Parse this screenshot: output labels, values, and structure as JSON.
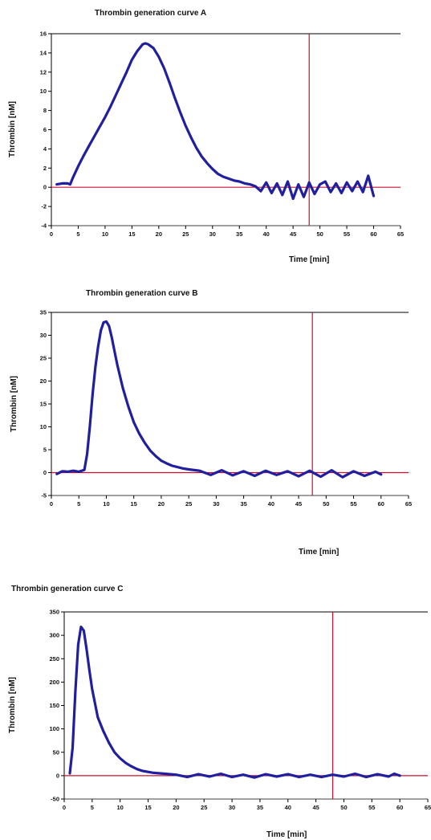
{
  "colors": {
    "curve": "#1f1fa0",
    "reference_lines": "#c8102e",
    "axis": "#000000"
  },
  "chart_data": [
    {
      "type": "line",
      "title": "Thrombin generation curve A",
      "xlabel": "Time [min]",
      "ylabel": "Thrombin [nM]",
      "xlim": [
        0,
        65
      ],
      "ylim": [
        -4,
        16
      ],
      "xticks": [
        0,
        5,
        10,
        15,
        20,
        25,
        30,
        35,
        40,
        45,
        50,
        55,
        60,
        65
      ],
      "yticks": [
        -4,
        -2,
        0,
        2,
        4,
        6,
        8,
        10,
        12,
        14,
        16
      ],
      "xtick_labels": [
        "0",
        "5",
        "10",
        "15",
        "20",
        "25",
        "30",
        "35",
        "40",
        "45",
        "50",
        "55",
        "60",
        "65"
      ],
      "ytick_labels": [
        "-4",
        "-2",
        "0",
        "2",
        "4",
        "6",
        "8",
        "10",
        "12",
        "14",
        "16"
      ],
      "vline_x": 48,
      "hline_y": 0,
      "series": [
        {
          "x": [
            1,
            2,
            3,
            3.5,
            4,
            5,
            6,
            7,
            8,
            9,
            10,
            11,
            12,
            13,
            14,
            15,
            16,
            17,
            17.5,
            18,
            19,
            20,
            21,
            22,
            23,
            24,
            25,
            26,
            27,
            28,
            29,
            30,
            31,
            32,
            33,
            34,
            35,
            36,
            37,
            38,
            39,
            40,
            41,
            42,
            43,
            44,
            45,
            46,
            47,
            48,
            49,
            50,
            51,
            52,
            53,
            54,
            55,
            56,
            57,
            58,
            59,
            60
          ],
          "y": [
            0.3,
            0.4,
            0.4,
            0.3,
            1.0,
            2.2,
            3.3,
            4.3,
            5.3,
            6.3,
            7.3,
            8.4,
            9.6,
            10.8,
            12.0,
            13.3,
            14.2,
            14.9,
            15.0,
            14.9,
            14.5,
            13.6,
            12.4,
            10.9,
            9.3,
            7.8,
            6.4,
            5.2,
            4.1,
            3.2,
            2.5,
            1.9,
            1.4,
            1.1,
            0.9,
            0.7,
            0.6,
            0.4,
            0.3,
            0.1,
            -0.4,
            0.5,
            -0.6,
            0.4,
            -0.8,
            0.6,
            -1.2,
            0.3,
            -1.0,
            0.5,
            -0.7,
            0.3,
            0.6,
            -0.5,
            0.4,
            -0.6,
            0.5,
            -0.4,
            0.6,
            -0.5,
            1.2,
            -0.9
          ]
        }
      ]
    },
    {
      "type": "line",
      "title": "Thrombin generation curve B",
      "xlabel": "Time [min]",
      "ylabel": "Thrombin [nM]",
      "xlim": [
        0,
        65
      ],
      "ylim": [
        -5,
        35
      ],
      "xticks": [
        0,
        5,
        10,
        15,
        20,
        25,
        30,
        35,
        40,
        45,
        50,
        55,
        60,
        65
      ],
      "yticks": [
        -5,
        0,
        5,
        10,
        15,
        20,
        25,
        30,
        35
      ],
      "xtick_labels": [
        "0",
        "5",
        "10",
        "15",
        "20",
        "25",
        "30",
        "35",
        "40",
        "45",
        "50",
        "55",
        "60",
        "65"
      ],
      "ytick_labels": [
        "-5",
        "0",
        "5",
        "10",
        "15",
        "20",
        "25",
        "30",
        "35"
      ],
      "vline_x": 47.5,
      "hline_y": 0,
      "series": [
        {
          "x": [
            1,
            2,
            3,
            4,
            5,
            6,
            6.5,
            7,
            7.5,
            8,
            8.5,
            9,
            9.5,
            10,
            10.5,
            11,
            11.5,
            12,
            13,
            14,
            15,
            16,
            17,
            18,
            19,
            20,
            21,
            22,
            23,
            24,
            25,
            27,
            29,
            31,
            33,
            35,
            37,
            39,
            41,
            43,
            45,
            47,
            49,
            51,
            53,
            55,
            57,
            59,
            60
          ],
          "y": [
            -0.3,
            0.3,
            0.2,
            0.4,
            0.2,
            0.6,
            4.0,
            10.0,
            17.0,
            23.0,
            27.5,
            31.0,
            32.8,
            33.0,
            32.0,
            29.5,
            26.5,
            23.5,
            18.5,
            14.5,
            11.0,
            8.5,
            6.5,
            4.8,
            3.6,
            2.6,
            2.0,
            1.5,
            1.2,
            0.9,
            0.7,
            0.4,
            -0.5,
            0.5,
            -0.6,
            0.3,
            -0.7,
            0.4,
            -0.5,
            0.3,
            -0.8,
            0.4,
            -0.9,
            0.5,
            -1.0,
            0.3,
            -0.7,
            0.2,
            -0.4
          ]
        }
      ]
    },
    {
      "type": "line",
      "title": "Thrombin generation curve C",
      "xlabel": "Time [min]",
      "ylabel": "Thrombin [nM]",
      "xlim": [
        0,
        65
      ],
      "ylim": [
        -50,
        350
      ],
      "xticks": [
        0,
        5,
        10,
        15,
        20,
        25,
        30,
        35,
        40,
        45,
        50,
        55,
        60,
        65
      ],
      "yticks": [
        -50,
        0,
        50,
        100,
        150,
        200,
        250,
        300,
        350
      ],
      "xtick_labels": [
        "0",
        "5",
        "10",
        "15",
        "20",
        "25",
        "30",
        "35",
        "40",
        "45",
        "50",
        "55",
        "60",
        "65"
      ],
      "ytick_labels": [
        "-50",
        "0",
        "50",
        "100",
        "150",
        "200",
        "250",
        "300",
        "350"
      ],
      "vline_x": 48,
      "hline_y": 0,
      "series": [
        {
          "x": [
            1,
            1.5,
            2,
            2.5,
            3,
            3.5,
            4,
            4.5,
            5,
            5.5,
            6,
            7,
            8,
            9,
            10,
            11,
            12,
            13,
            14,
            15,
            16,
            18,
            20,
            22,
            24,
            26,
            28,
            30,
            32,
            34,
            36,
            38,
            40,
            42,
            44,
            46,
            48,
            50,
            52,
            54,
            56,
            58,
            59,
            60
          ],
          "y": [
            5,
            60,
            180,
            280,
            318,
            310,
            270,
            225,
            185,
            155,
            125,
            95,
            70,
            50,
            37,
            27,
            20,
            14,
            10,
            8,
            6,
            4,
            2,
            -3,
            3,
            -2,
            4,
            -3,
            2,
            -4,
            3,
            -2,
            3,
            -3,
            2,
            -3,
            2,
            -2,
            4,
            -3,
            3,
            -2,
            4,
            0
          ]
        }
      ]
    }
  ]
}
